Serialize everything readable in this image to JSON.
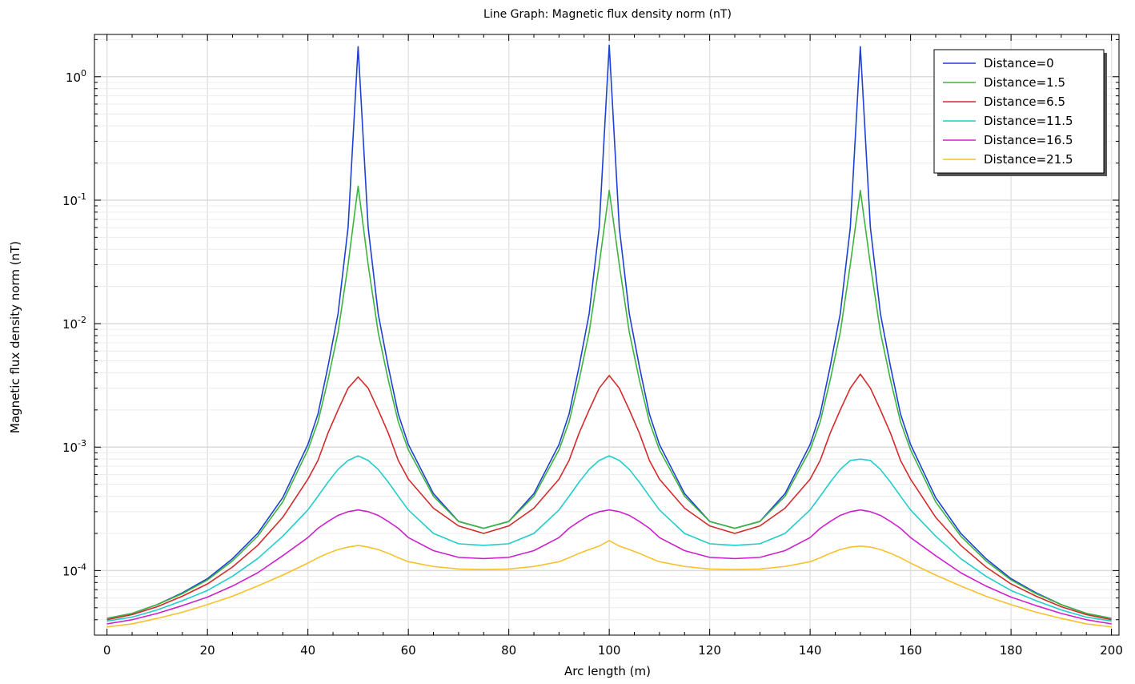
{
  "chart_data": {
    "type": "line",
    "title": "Line Graph: Magnetic flux density norm (nT)",
    "xlabel": "Arc length (m)",
    "ylabel": "Magnetic flux density norm (nT)",
    "xlim": [
      -2.5,
      201.5
    ],
    "ylim": [
      3e-05,
      2.2
    ],
    "yscale": "log",
    "grid": true,
    "legend_position": "top-right",
    "x_ticks": [
      0,
      20,
      40,
      60,
      80,
      100,
      120,
      140,
      160,
      180,
      200
    ],
    "y_ticks": [
      {
        "value": 0.0001,
        "base": "10",
        "exponent": "-4"
      },
      {
        "value": 0.001,
        "base": "10",
        "exponent": "-3"
      },
      {
        "value": 0.01,
        "base": "10",
        "exponent": "-2"
      },
      {
        "value": 0.1,
        "base": "10",
        "exponent": "-1"
      },
      {
        "value": 1,
        "base": "10",
        "exponent": "0"
      }
    ],
    "x": [
      0,
      5,
      10,
      15,
      20,
      25,
      30,
      35,
      40,
      42,
      44,
      46,
      48,
      50,
      52,
      54,
      56,
      58,
      60,
      65,
      70,
      75,
      80,
      85,
      90,
      92,
      94,
      96,
      98,
      100,
      102,
      104,
      106,
      108,
      110,
      115,
      120,
      125,
      130,
      135,
      140,
      142,
      144,
      146,
      148,
      150,
      152,
      154,
      156,
      158,
      160,
      165,
      170,
      175,
      180,
      185,
      190,
      195,
      200
    ],
    "series": [
      {
        "name": "Distance=0",
        "color": "#1f3fd6",
        "values": [
          4.1e-05,
          4.5e-05,
          5.3e-05,
          6.6e-05,
          8.6e-05,
          0.000125,
          0.0002,
          0.00039,
          0.00105,
          0.00185,
          0.0045,
          0.012,
          0.06,
          1.75,
          0.06,
          0.012,
          0.0045,
          0.00185,
          0.00105,
          0.00042,
          0.00025,
          0.00022,
          0.00025,
          0.00042,
          0.00105,
          0.00185,
          0.0045,
          0.012,
          0.06,
          1.8,
          0.06,
          0.012,
          0.0045,
          0.00185,
          0.00105,
          0.00042,
          0.00025,
          0.00022,
          0.00025,
          0.00042,
          0.00105,
          0.00185,
          0.0045,
          0.012,
          0.06,
          1.75,
          0.06,
          0.012,
          0.0045,
          0.00185,
          0.00105,
          0.00039,
          0.0002,
          0.000125,
          8.6e-05,
          6.6e-05,
          5.3e-05,
          4.5e-05,
          4.1e-05
        ]
      },
      {
        "name": "Distance=1.5",
        "color": "#3db53d",
        "values": [
          4.1e-05,
          4.5e-05,
          5.3e-05,
          6.5e-05,
          8.4e-05,
          0.00012,
          0.00019,
          0.00036,
          0.00095,
          0.0016,
          0.0035,
          0.0085,
          0.03,
          0.13,
          0.03,
          0.0085,
          0.0035,
          0.0016,
          0.00095,
          0.0004,
          0.00025,
          0.00022,
          0.00025,
          0.0004,
          0.00095,
          0.0016,
          0.0035,
          0.0085,
          0.03,
          0.12,
          0.03,
          0.0085,
          0.0035,
          0.0016,
          0.00095,
          0.0004,
          0.00025,
          0.00022,
          0.00025,
          0.0004,
          0.00095,
          0.0016,
          0.0035,
          0.0085,
          0.03,
          0.12,
          0.03,
          0.0085,
          0.0035,
          0.0016,
          0.00095,
          0.00036,
          0.00019,
          0.00012,
          8.4e-05,
          6.5e-05,
          5.3e-05,
          4.5e-05,
          4.1e-05
        ]
      },
      {
        "name": "Distance=6.5",
        "color": "#d42a2a",
        "values": [
          4e-05,
          4.4e-05,
          5.1e-05,
          6.2e-05,
          7.8e-05,
          0.000107,
          0.00016,
          0.00027,
          0.00055,
          0.00078,
          0.0013,
          0.002,
          0.003,
          0.0037,
          0.003,
          0.002,
          0.0013,
          0.00078,
          0.00055,
          0.00032,
          0.00023,
          0.0002,
          0.00023,
          0.00032,
          0.00055,
          0.00078,
          0.0013,
          0.002,
          0.003,
          0.0038,
          0.003,
          0.002,
          0.0013,
          0.00078,
          0.00055,
          0.00032,
          0.00023,
          0.0002,
          0.00023,
          0.00032,
          0.00055,
          0.00078,
          0.0013,
          0.002,
          0.003,
          0.0039,
          0.003,
          0.002,
          0.0013,
          0.00078,
          0.00055,
          0.00027,
          0.00016,
          0.000107,
          7.8e-05,
          6.2e-05,
          5.1e-05,
          4.4e-05,
          4e-05
        ]
      },
      {
        "name": "Distance=11.5",
        "color": "#22cccc",
        "values": [
          3.9e-05,
          4.2e-05,
          4.8e-05,
          5.7e-05,
          6.9e-05,
          9e-05,
          0.000125,
          0.00019,
          0.00031,
          0.0004,
          0.00052,
          0.00066,
          0.00078,
          0.00085,
          0.00078,
          0.00066,
          0.00052,
          0.0004,
          0.00031,
          0.0002,
          0.000165,
          0.00016,
          0.000165,
          0.0002,
          0.00031,
          0.0004,
          0.00052,
          0.00066,
          0.00078,
          0.00085,
          0.00078,
          0.00066,
          0.00052,
          0.0004,
          0.00031,
          0.0002,
          0.000165,
          0.00016,
          0.000165,
          0.0002,
          0.00031,
          0.0004,
          0.00052,
          0.00066,
          0.00078,
          0.0008,
          0.00078,
          0.00066,
          0.00052,
          0.0004,
          0.00031,
          0.00019,
          0.000125,
          9e-05,
          6.9e-05,
          5.7e-05,
          4.8e-05,
          4.2e-05,
          3.9e-05
        ]
      },
      {
        "name": "Distance=16.5",
        "color": "#cc22cc",
        "values": [
          3.7e-05,
          4e-05,
          4.5e-05,
          5.2e-05,
          6.1e-05,
          7.5e-05,
          9.6e-05,
          0.000132,
          0.000185,
          0.00022,
          0.00025,
          0.00028,
          0.0003,
          0.00031,
          0.0003,
          0.00028,
          0.00025,
          0.00022,
          0.000185,
          0.000145,
          0.000128,
          0.000125,
          0.000128,
          0.000145,
          0.000185,
          0.00022,
          0.00025,
          0.00028,
          0.0003,
          0.00031,
          0.0003,
          0.00028,
          0.00025,
          0.00022,
          0.000185,
          0.000145,
          0.000128,
          0.000125,
          0.000128,
          0.000145,
          0.000185,
          0.00022,
          0.00025,
          0.00028,
          0.0003,
          0.00031,
          0.0003,
          0.00028,
          0.00025,
          0.00022,
          0.000185,
          0.000132,
          9.6e-05,
          7.5e-05,
          6.1e-05,
          5.2e-05,
          4.5e-05,
          4e-05,
          3.7e-05
        ]
      },
      {
        "name": "Distance=21.5",
        "color": "#f7c12b",
        "values": [
          3.5e-05,
          3.7e-05,
          4.1e-05,
          4.6e-05,
          5.3e-05,
          6.2e-05,
          7.5e-05,
          9.2e-05,
          0.000115,
          0.000127,
          0.000138,
          0.000148,
          0.000155,
          0.00016,
          0.000155,
          0.000148,
          0.000138,
          0.000127,
          0.000118,
          0.000108,
          0.000103,
          0.000102,
          0.000103,
          0.000108,
          0.000118,
          0.000127,
          0.000138,
          0.000148,
          0.000158,
          0.000175,
          0.000158,
          0.000148,
          0.000138,
          0.000127,
          0.000118,
          0.000108,
          0.000103,
          0.000102,
          0.000103,
          0.000108,
          0.000118,
          0.000127,
          0.000138,
          0.000148,
          0.000155,
          0.000158,
          0.000155,
          0.000148,
          0.000138,
          0.000127,
          0.000115,
          9.2e-05,
          7.5e-05,
          6.2e-05,
          5.3e-05,
          4.6e-05,
          4.1e-05,
          3.7e-05,
          3.5e-05
        ]
      }
    ]
  }
}
